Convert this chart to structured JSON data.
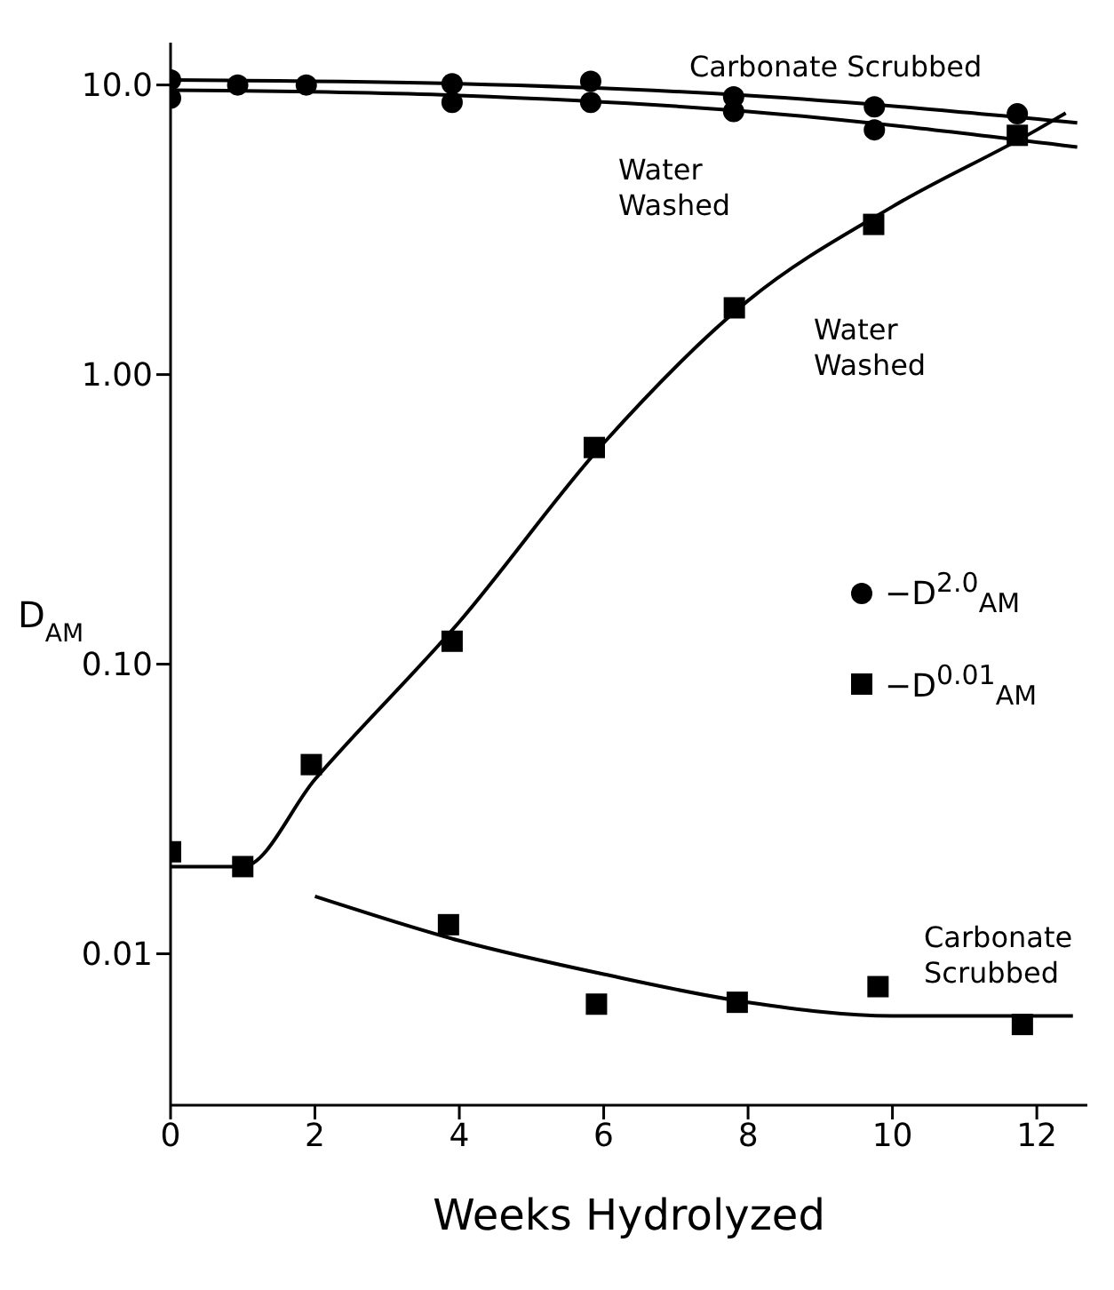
{
  "chart_data": {
    "type": "scatter",
    "xlabel": "Weeks Hydrolyzed",
    "ylabel": "D$_{AM}$",
    "log": "y",
    "xlim": [
      0,
      12.7
    ],
    "xticks": [
      0,
      2,
      4,
      6,
      8,
      10,
      12
    ],
    "ylim": [
      0.003,
      14
    ],
    "yticks": [
      {
        "value": 0.01,
        "label": "0.01"
      },
      {
        "value": 0.1,
        "label": "0.10"
      },
      {
        "value": 1,
        "label": "1.00"
      },
      {
        "value": 10,
        "label": "10.0"
      }
    ],
    "grid": false,
    "legend": "right",
    "series": [
      {
        "name": "−D$^{2.0}$$_{AM}$",
        "marker": "circle",
        "color": "#000000",
        "x": [
          0,
          0.93,
          1.88,
          3.9,
          5.82,
          7.8,
          9.75,
          11.73,
          0,
          3.9,
          5.82,
          7.8,
          9.75
        ],
        "values": [
          10.4,
          10.0,
          10.0,
          10.1,
          10.3,
          9.1,
          8.4,
          7.95,
          9.0,
          8.7,
          8.7,
          8.1,
          7.0
        ]
      },
      {
        "name": "−D$^{0.01}$$_{AM}$",
        "marker": "square",
        "color": "#000000",
        "x": [
          0,
          1,
          1.95,
          3.9,
          5.87,
          7.81,
          9.74,
          11.73,
          3.85,
          5.9,
          7.85,
          9.8,
          11.8
        ],
        "values": [
          0.0225,
          0.02,
          0.045,
          0.12,
          0.56,
          1.7,
          3.3,
          6.7,
          0.0126,
          0.0067,
          0.0068,
          0.0077,
          0.0057
        ]
      },
      {
        "type": "line",
        "marker": "none",
        "color": "#000000",
        "x": [
          0,
          4,
          8,
          12.56
        ],
        "values": [
          10.4,
          10.1,
          9.2,
          7.4
        ]
      },
      {
        "type": "line",
        "marker": "none",
        "color": "#000000",
        "x": [
          0,
          4,
          8,
          12.56
        ],
        "values": [
          9.6,
          9.2,
          8.1,
          6.1
        ]
      },
      {
        "type": "line",
        "marker": "none",
        "color": "#000000",
        "x": [
          0,
          1,
          2,
          4,
          6,
          8,
          10,
          12,
          12.4
        ],
        "values": [
          0.02,
          0.02,
          0.04,
          0.14,
          0.58,
          1.8,
          3.8,
          7.0,
          8.0
        ]
      },
      {
        "type": "line",
        "marker": "none",
        "color": "#000000",
        "x": [
          2,
          4,
          6,
          8,
          10,
          12.5
        ],
        "values": [
          0.0158,
          0.0111,
          0.0085,
          0.0068,
          0.0061,
          0.0061
        ]
      }
    ],
    "annotations": [
      "Carbonate Scrubbed",
      "Water Washed",
      "Water Washed",
      "Carbonate Scrubbed"
    ]
  }
}
